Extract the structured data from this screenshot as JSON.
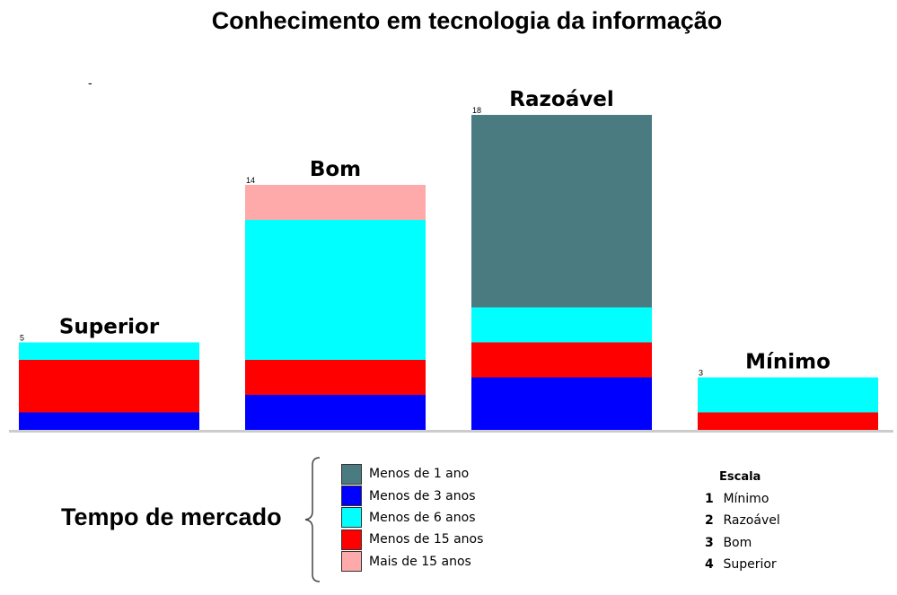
{
  "chart_data": {
    "type": "bar",
    "stacked": true,
    "title": "Conhecimento em tecnologia da informação",
    "categories": [
      "Superior",
      "Bom",
      "Razoável",
      "Mínimo"
    ],
    "totals": [
      5,
      14,
      18,
      3
    ],
    "ylim": [
      0,
      18
    ],
    "series": [
      {
        "name": "Menos de 3 anos",
        "color": "#0000ff",
        "values": [
          1,
          2,
          3,
          0
        ]
      },
      {
        "name": "Menos de 15 anos",
        "color": "#ff0000",
        "values": [
          3,
          2,
          2,
          1
        ]
      },
      {
        "name": "Menos de 6 anos",
        "color": "#00ffff",
        "values": [
          1,
          8,
          2,
          2
        ]
      },
      {
        "name": "Menos de 1 ano",
        "color": "#4a7b80",
        "values": [
          0,
          0,
          11,
          0
        ]
      },
      {
        "name": "Mais de 15 anos",
        "color": "#ffaaaa",
        "values": [
          0,
          2,
          0,
          0
        ]
      }
    ]
  },
  "marker": "-",
  "legend": {
    "title": "Tempo de mercado",
    "items": [
      {
        "label": "Menos de 1 ano",
        "color": "#4a7b80"
      },
      {
        "label": "Menos de 3 anos",
        "color": "#0000ff"
      },
      {
        "label": "Menos de 6 anos",
        "color": "#00ffff"
      },
      {
        "label": "Menos de 15 anos",
        "color": "#ff0000"
      },
      {
        "label": "Mais de 15 anos",
        "color": "#ffaaaa"
      }
    ]
  },
  "scale": {
    "title": "Escala",
    "items": [
      {
        "num": "1",
        "label": "Mínimo"
      },
      {
        "num": "2",
        "label": "Razoável"
      },
      {
        "num": "3",
        "label": "Bom"
      },
      {
        "num": "4",
        "label": "Superior"
      }
    ]
  }
}
